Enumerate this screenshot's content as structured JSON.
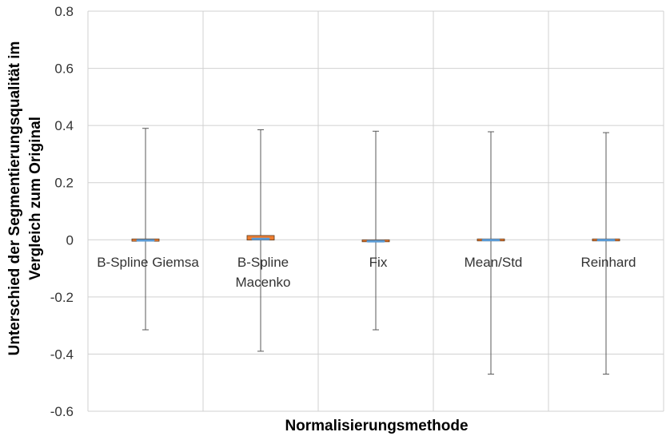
{
  "chart_data": {
    "type": "box",
    "title": "",
    "xlabel": "Normalisierungsmethode",
    "ylabel_lines": [
      "Unterschied der Segmentierungsqualität im",
      "Vergleich zum Original"
    ],
    "ylim": [
      -0.6,
      0.8
    ],
    "yticks": [
      "0.8",
      "0.6",
      "0.4",
      "0.2",
      "0",
      "-0.2",
      "-0.4",
      "-0.6"
    ],
    "grid": true,
    "legend": "none",
    "categories": [
      {
        "label_lines": [
          "B-Spline Giemsa"
        ]
      },
      {
        "label_lines": [
          "B-Spline",
          "Macenko"
        ]
      },
      {
        "label_lines": [
          "Fix"
        ]
      },
      {
        "label_lines": [
          "Mean/Std"
        ]
      },
      {
        "label_lines": [
          "Reinhard"
        ]
      }
    ],
    "boxes": [
      {
        "min": -0.315,
        "q1": -0.005,
        "median": -0.002,
        "q3": 0.003,
        "max": 0.39
      },
      {
        "min": -0.39,
        "q1": -0.001,
        "median": 0.003,
        "q3": 0.015,
        "max": 0.385
      },
      {
        "min": -0.315,
        "q1": -0.007,
        "median": -0.005,
        "q3": 0.0,
        "max": 0.38
      },
      {
        "min": -0.47,
        "q1": -0.002,
        "median": -0.001,
        "q3": 0.003,
        "max": 0.378
      },
      {
        "min": -0.47,
        "q1": -0.003,
        "median": -0.001,
        "q3": 0.003,
        "max": 0.375
      }
    ],
    "colors": {
      "box": "#ED7D31",
      "box_edge": "#5A3A1E",
      "median": "#5B9BD5",
      "whisker": "#595959",
      "grid": "#D0D0D0"
    }
  }
}
